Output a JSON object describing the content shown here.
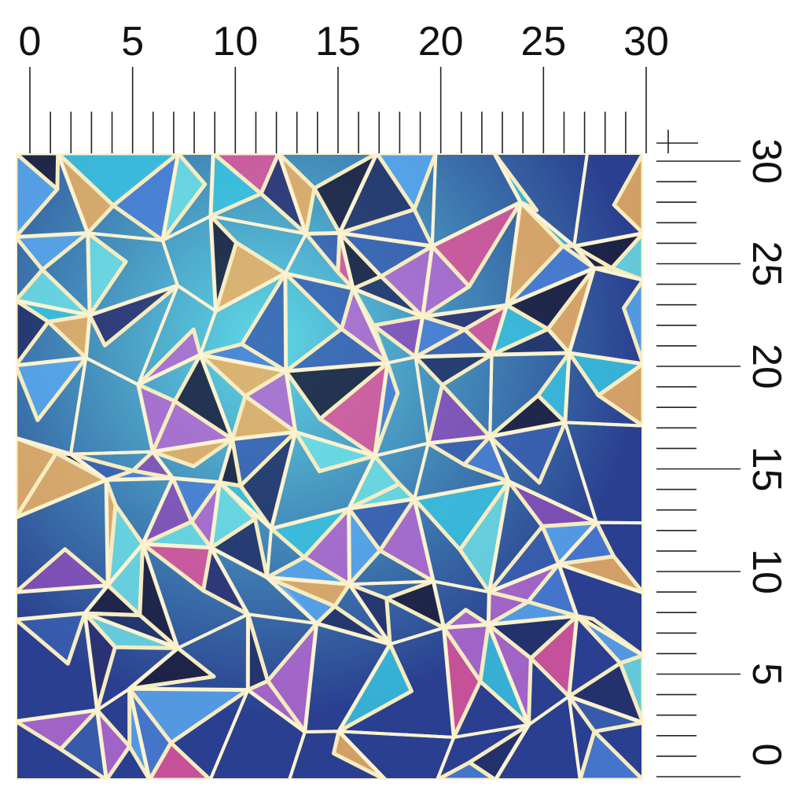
{
  "top_ruler": {
    "labels": [
      0,
      5,
      10,
      15,
      20,
      25,
      30
    ]
  },
  "right_ruler": {
    "labels": [
      0,
      5,
      10,
      15,
      20,
      25,
      30
    ]
  }
}
